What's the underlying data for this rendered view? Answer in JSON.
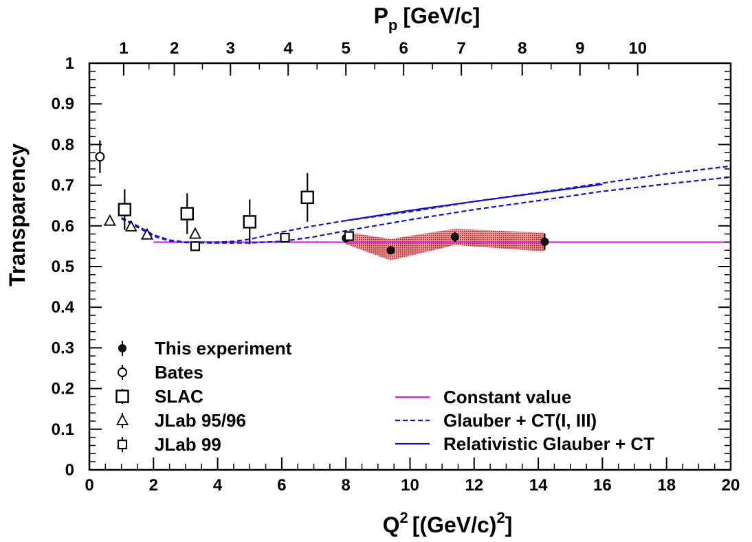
{
  "chart_data": {
    "type": "scatter",
    "xlabel_main": "Q",
    "xlabel_sup": "2",
    "xlabel_unit_pre": "[(GeV/c)",
    "xlabel_unit_sup": "2",
    "xlabel_unit_post": "]",
    "ylabel": "Transparency",
    "top_axis_label_main": "P",
    "top_axis_label_sub": "p",
    "top_axis_label_unit": "[GeV/c]",
    "xlim": [
      0,
      20
    ],
    "ylim": [
      0,
      1
    ],
    "x_ticks": [
      "0",
      "2",
      "4",
      "6",
      "8",
      "10",
      "12",
      "14",
      "16",
      "18",
      "20"
    ],
    "y_ticks": [
      "0",
      "0.1",
      "0.2",
      "0.3",
      "0.4",
      "0.5",
      "0.6",
      "0.7",
      "0.8",
      "0.9",
      "1"
    ],
    "top_ticks": [
      {
        "p": "1",
        "q2": 1.07
      },
      {
        "p": "2",
        "q2": 2.65
      },
      {
        "p": "3",
        "q2": 4.4
      },
      {
        "p": "4",
        "q2": 6.2
      },
      {
        "p": "5",
        "q2": 8.0
      },
      {
        "p": "6",
        "q2": 9.8
      },
      {
        "p": "7",
        "q2": 11.6
      },
      {
        "p": "8",
        "q2": 13.5
      },
      {
        "p": "9",
        "q2": 15.3
      },
      {
        "p": "10",
        "q2": 17.1
      }
    ],
    "series": [
      {
        "name": "This experiment",
        "marker": "filled-circle",
        "points": [
          {
            "x": 8.0,
            "y": 0.57,
            "err": 0.012
          },
          {
            "x": 9.4,
            "y": 0.54,
            "err": 0.01
          },
          {
            "x": 11.4,
            "y": 0.573,
            "err": 0.012
          },
          {
            "x": 14.2,
            "y": 0.561,
            "err": 0.02
          }
        ]
      },
      {
        "name": "Bates",
        "marker": "open-circle",
        "points": [
          {
            "x": 0.33,
            "y": 0.77,
            "err": 0.04
          }
        ]
      },
      {
        "name": "SLAC",
        "marker": "open-square-large",
        "points": [
          {
            "x": 1.1,
            "y": 0.64,
            "err": 0.05
          },
          {
            "x": 3.05,
            "y": 0.63,
            "err": 0.05
          },
          {
            "x": 5.0,
            "y": 0.61,
            "err": 0.055
          },
          {
            "x": 6.8,
            "y": 0.67,
            "err": 0.06
          }
        ]
      },
      {
        "name": "JLab 95/96",
        "marker": "open-triangle",
        "points": [
          {
            "x": 0.64,
            "y": 0.612,
            "err": 0.01
          },
          {
            "x": 1.3,
            "y": 0.598,
            "err": 0.01
          },
          {
            "x": 1.8,
            "y": 0.578,
            "err": 0.01
          },
          {
            "x": 3.3,
            "y": 0.58,
            "err": 0.012
          }
        ]
      },
      {
        "name": "JLab 99",
        "marker": "open-square-small",
        "points": [
          {
            "x": 3.3,
            "y": 0.55,
            "err": 0.01
          },
          {
            "x": 6.1,
            "y": 0.571,
            "err": 0.01
          },
          {
            "x": 8.1,
            "y": 0.575,
            "err": 0.01
          }
        ]
      }
    ],
    "band": {
      "color": "#b01010",
      "upper": [
        [
          8.0,
          0.585
        ],
        [
          9.4,
          0.568
        ],
        [
          11.4,
          0.593
        ],
        [
          14.2,
          0.583
        ]
      ],
      "lower": [
        [
          8.0,
          0.555
        ],
        [
          9.4,
          0.515
        ],
        [
          11.4,
          0.553
        ],
        [
          14.2,
          0.537
        ]
      ]
    },
    "curves": [
      {
        "name": "Constant value",
        "style": "solid",
        "color": "#e020e0",
        "points": [
          [
            2.0,
            0.56
          ],
          [
            20.0,
            0.56
          ]
        ]
      },
      {
        "name": "Glauber + CT(I, III)",
        "style": "dashed",
        "color": "#1010e0",
        "points": [
          [
            1.0,
            0.62
          ],
          [
            1.5,
            0.6
          ],
          [
            2.0,
            0.578
          ],
          [
            2.5,
            0.565
          ],
          [
            3.0,
            0.56
          ],
          [
            4.0,
            0.56
          ],
          [
            4.5,
            0.562
          ],
          [
            5.0,
            0.567
          ],
          [
            6.0,
            0.585
          ],
          [
            7.0,
            0.6
          ],
          [
            8.0,
            0.613
          ],
          [
            10.0,
            0.635
          ],
          [
            12.0,
            0.66
          ],
          [
            14.0,
            0.682
          ],
          [
            16.0,
            0.705
          ],
          [
            18.0,
            0.728
          ],
          [
            20.0,
            0.747
          ]
        ]
      },
      {
        "name": "",
        "style": "dashed",
        "color": "#1010e0",
        "points": [
          [
            1.0,
            0.618
          ],
          [
            1.5,
            0.597
          ],
          [
            2.0,
            0.575
          ],
          [
            2.5,
            0.563
          ],
          [
            3.0,
            0.559
          ],
          [
            4.0,
            0.558
          ],
          [
            5.0,
            0.558
          ],
          [
            6.0,
            0.562
          ],
          [
            7.0,
            0.573
          ],
          [
            8.0,
            0.588
          ],
          [
            10.0,
            0.615
          ],
          [
            12.0,
            0.64
          ],
          [
            14.0,
            0.662
          ],
          [
            16.0,
            0.685
          ],
          [
            18.0,
            0.703
          ],
          [
            20.0,
            0.72
          ]
        ]
      },
      {
        "name": "Relativistic Glauber + CT",
        "style": "solid",
        "color": "#1010e0",
        "points": [
          [
            8.0,
            0.613
          ],
          [
            10.0,
            0.638
          ],
          [
            12.0,
            0.66
          ],
          [
            14.0,
            0.681
          ],
          [
            16.0,
            0.702
          ]
        ]
      }
    ],
    "legend_left": [
      "This experiment",
      "Bates",
      "SLAC",
      "JLab 95/96",
      "JLab 99"
    ],
    "legend_right": [
      "Constant value",
      "Glauber + CT(I, III)",
      "Relativistic Glauber + CT"
    ],
    "grid": false
  }
}
